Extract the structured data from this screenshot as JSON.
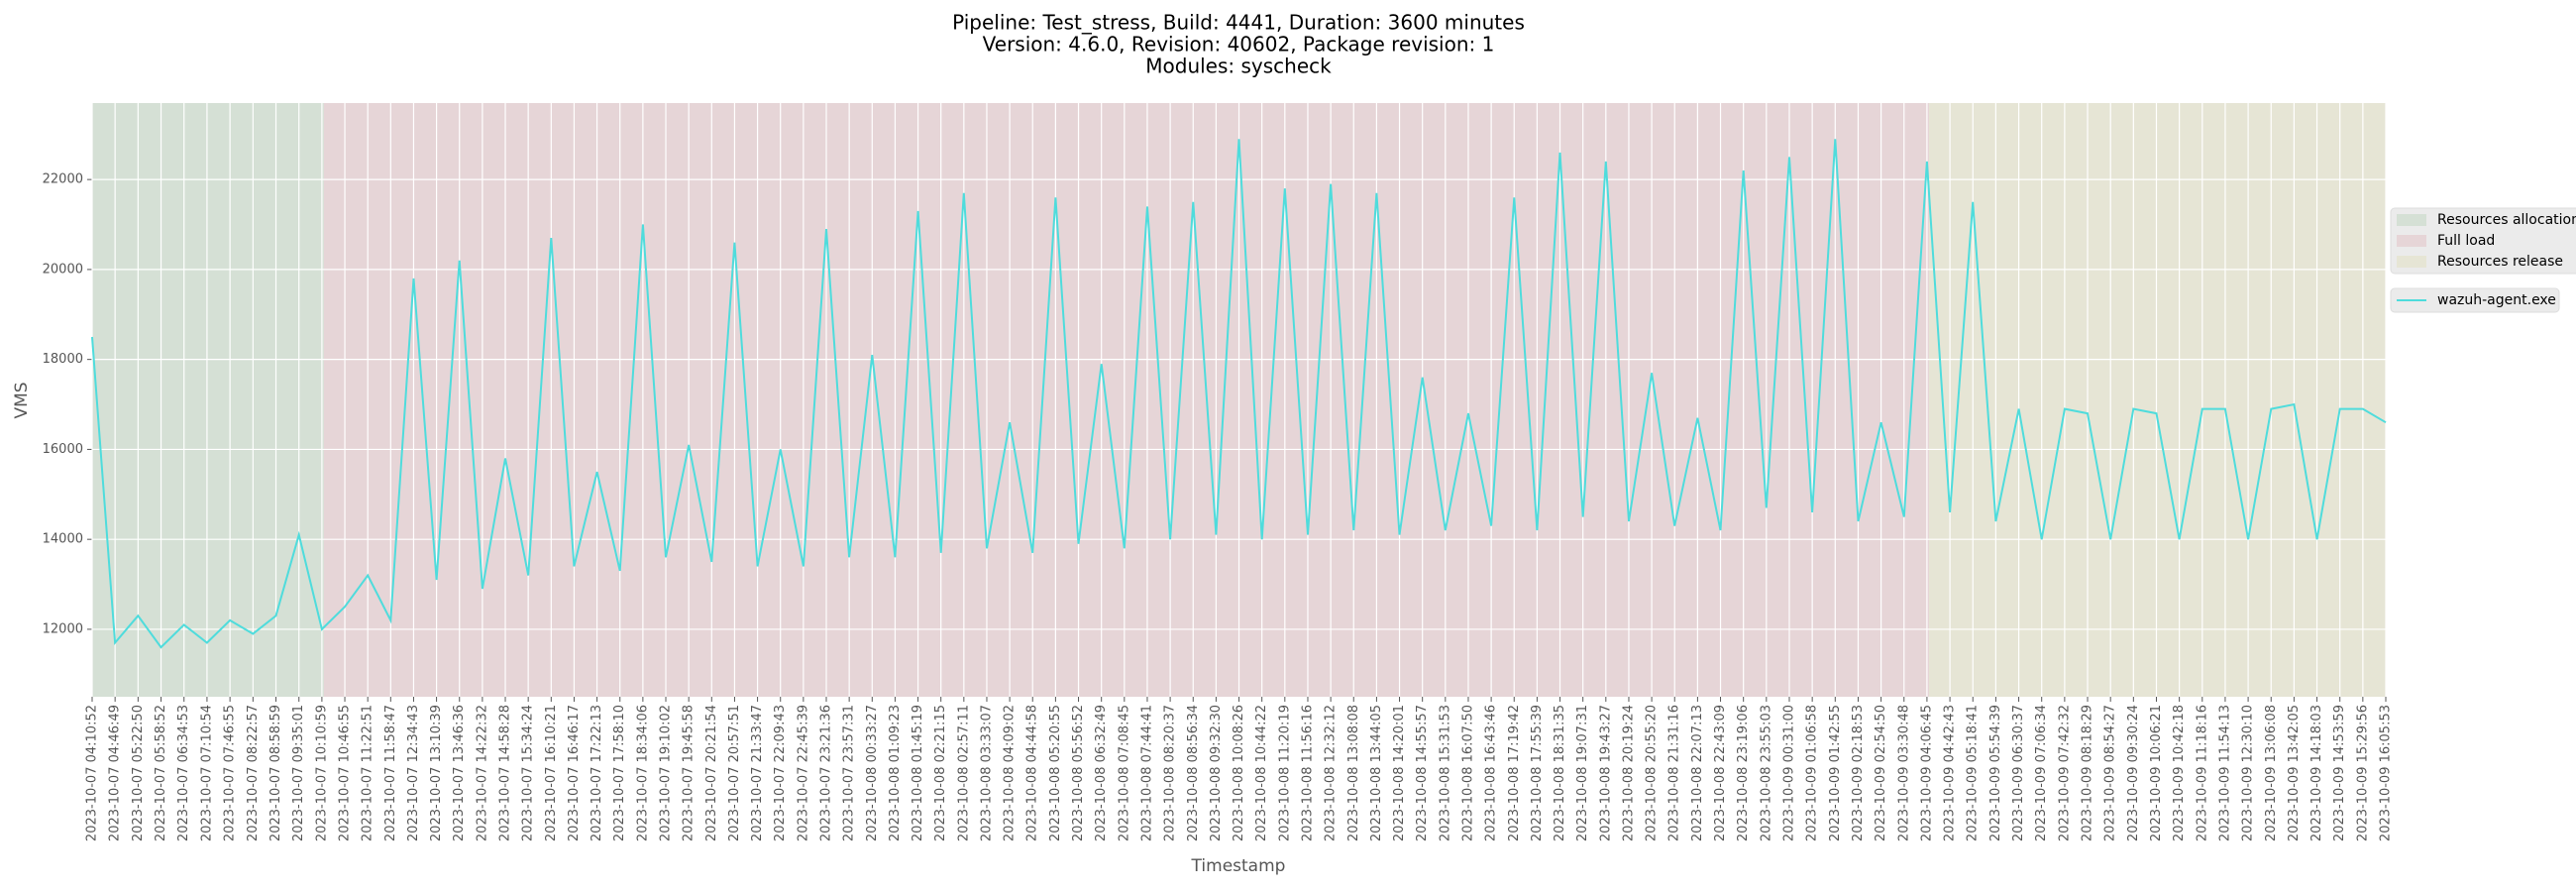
{
  "chart_data": {
    "type": "line",
    "title": [
      "Pipeline: Test_stress, Build: 4441, Duration: 3600 minutes",
      "Version: 4.6.0, Revision: 40602, Package revision: 1",
      "Modules: syscheck"
    ],
    "xlabel": "Timestamp",
    "ylabel": "VMS",
    "x": [
      "2023-10-07 04:10:52",
      "2023-10-07 04:46:49",
      "2023-10-07 05:22:50",
      "2023-10-07 05:58:52",
      "2023-10-07 06:34:53",
      "2023-10-07 07:10:54",
      "2023-10-07 07:46:55",
      "2023-10-07 08:22:57",
      "2023-10-07 08:58:59",
      "2023-10-07 09:35:01",
      "2023-10-07 10:10:59",
      "2023-10-07 10:46:55",
      "2023-10-07 11:22:51",
      "2023-10-07 11:58:47",
      "2023-10-07 12:34:43",
      "2023-10-07 13:10:39",
      "2023-10-07 13:46:36",
      "2023-10-07 14:22:32",
      "2023-10-07 14:58:28",
      "2023-10-07 15:34:24",
      "2023-10-07 16:10:21",
      "2023-10-07 16:46:17",
      "2023-10-07 17:22:13",
      "2023-10-07 17:58:10",
      "2023-10-07 18:34:06",
      "2023-10-07 19:10:02",
      "2023-10-07 19:45:58",
      "2023-10-07 20:21:54",
      "2023-10-07 20:57:51",
      "2023-10-07 21:33:47",
      "2023-10-07 22:09:43",
      "2023-10-07 22:45:39",
      "2023-10-07 23:21:36",
      "2023-10-07 23:57:31",
      "2023-10-08 00:33:27",
      "2023-10-08 01:09:23",
      "2023-10-08 01:45:19",
      "2023-10-08 02:21:15",
      "2023-10-08 02:57:11",
      "2023-10-08 03:33:07",
      "2023-10-08 04:09:02",
      "2023-10-08 04:44:58",
      "2023-10-08 05:20:55",
      "2023-10-08 05:56:52",
      "2023-10-08 06:32:49",
      "2023-10-08 07:08:45",
      "2023-10-08 07:44:41",
      "2023-10-08 08:20:37",
      "2023-10-08 08:56:34",
      "2023-10-08 09:32:30",
      "2023-10-08 10:08:26",
      "2023-10-08 10:44:22",
      "2023-10-08 11:20:19",
      "2023-10-08 11:56:16",
      "2023-10-08 12:32:12",
      "2023-10-08 13:08:08",
      "2023-10-08 13:44:05",
      "2023-10-08 14:20:01",
      "2023-10-08 14:55:57",
      "2023-10-08 15:31:53",
      "2023-10-08 16:07:50",
      "2023-10-08 16:43:46",
      "2023-10-08 17:19:42",
      "2023-10-08 17:55:39",
      "2023-10-08 18:31:35",
      "2023-10-08 19:07:31",
      "2023-10-08 19:43:27",
      "2023-10-08 20:19:24",
      "2023-10-08 20:55:20",
      "2023-10-08 21:31:16",
      "2023-10-08 22:07:13",
      "2023-10-08 22:43:09",
      "2023-10-08 23:19:06",
      "2023-10-08 23:55:03",
      "2023-10-09 00:31:00",
      "2023-10-09 01:06:58",
      "2023-10-09 01:42:55",
      "2023-10-09 02:18:53",
      "2023-10-09 02:54:50",
      "2023-10-09 03:30:48",
      "2023-10-09 04:06:45",
      "2023-10-09 04:42:43",
      "2023-10-09 05:18:41",
      "2023-10-09 05:54:39",
      "2023-10-09 06:30:37",
      "2023-10-09 07:06:34",
      "2023-10-09 07:42:32",
      "2023-10-09 08:18:29",
      "2023-10-09 08:54:27",
      "2023-10-09 09:30:24",
      "2023-10-09 10:06:21",
      "2023-10-09 10:42:18",
      "2023-10-09 11:18:16",
      "2023-10-09 11:54:13",
      "2023-10-09 12:30:10",
      "2023-10-09 13:06:08",
      "2023-10-09 13:42:05",
      "2023-10-09 14:18:03",
      "2023-10-09 14:53:59",
      "2023-10-09 15:29:56",
      "2023-10-09 16:05:53"
    ],
    "xticks": [
      "2023-10-07 04:10:52",
      "2023-10-07 04:46:49",
      "2023-10-07 05:22:50",
      "2023-10-07 05:58:52",
      "2023-10-07 06:34:53",
      "2023-10-07 07:10:54",
      "2023-10-07 07:46:55",
      "2023-10-07 08:22:57",
      "2023-10-07 08:58:59",
      "2023-10-07 09:35:01",
      "2023-10-07 10:10:59",
      "2023-10-07 10:46:55",
      "2023-10-07 11:22:51",
      "2023-10-07 11:58:47",
      "2023-10-07 12:34:43",
      "2023-10-07 13:10:39",
      "2023-10-07 13:46:36",
      "2023-10-07 14:22:32",
      "2023-10-07 14:58:28",
      "2023-10-07 15:34:24",
      "2023-10-07 16:10:21",
      "2023-10-07 16:46:17",
      "2023-10-07 17:22:13",
      "2023-10-07 17:58:10",
      "2023-10-07 18:34:06",
      "2023-10-07 19:10:02",
      "2023-10-07 19:45:58",
      "2023-10-07 20:21:54",
      "2023-10-07 20:57:51",
      "2023-10-07 21:33:47",
      "2023-10-07 22:09:43",
      "2023-10-07 22:45:39",
      "2023-10-07 23:21:36",
      "2023-10-07 23:57:31",
      "2023-10-08 00:33:27",
      "2023-10-08 01:09:23",
      "2023-10-08 01:45:19",
      "2023-10-08 02:21:15",
      "2023-10-08 02:57:11",
      "2023-10-08 03:33:07",
      "2023-10-08 04:09:02",
      "2023-10-08 04:44:58",
      "2023-10-08 05:20:55",
      "2023-10-08 05:56:52",
      "2023-10-08 06:32:49",
      "2023-10-08 07:08:45",
      "2023-10-08 07:44:41",
      "2023-10-08 08:20:37",
      "2023-10-08 08:56:34",
      "2023-10-08 09:32:30",
      "2023-10-08 10:08:26",
      "2023-10-08 10:44:22",
      "2023-10-08 11:20:19",
      "2023-10-08 11:56:16",
      "2023-10-08 12:32:12",
      "2023-10-08 13:08:08",
      "2023-10-08 13:44:05",
      "2023-10-08 14:20:01",
      "2023-10-08 14:55:57",
      "2023-10-08 15:31:53",
      "2023-10-08 16:07:50",
      "2023-10-08 16:43:46",
      "2023-10-08 17:19:42",
      "2023-10-08 17:55:39",
      "2023-10-08 18:31:35",
      "2023-10-08 19:07:31",
      "2023-10-08 19:43:27",
      "2023-10-08 20:19:24",
      "2023-10-08 20:55:20",
      "2023-10-08 21:31:16",
      "2023-10-08 22:07:13",
      "2023-10-08 22:43:09",
      "2023-10-08 23:19:06",
      "2023-10-08 23:55:03",
      "2023-10-09 00:31:00",
      "2023-10-09 01:06:58",
      "2023-10-09 01:42:55",
      "2023-10-09 02:18:53",
      "2023-10-09 02:54:50",
      "2023-10-09 03:30:48",
      "2023-10-09 04:06:45",
      "2023-10-09 04:42:43",
      "2023-10-09 05:18:41",
      "2023-10-09 05:54:39",
      "2023-10-09 06:30:37",
      "2023-10-09 07:06:34",
      "2023-10-09 07:42:32",
      "2023-10-09 08:18:29",
      "2023-10-09 08:54:27",
      "2023-10-09 09:30:24",
      "2023-10-09 10:06:21",
      "2023-10-09 10:42:18",
      "2023-10-09 11:18:16",
      "2023-10-09 11:54:13",
      "2023-10-09 12:30:10",
      "2023-10-09 13:06:08",
      "2023-10-09 13:42:05",
      "2023-10-09 14:18:03",
      "2023-10-09 14:53:59",
      "2023-10-09 15:29:56",
      "2023-10-09 16:05:53"
    ],
    "xlim": [
      "2023-10-07 04:10:52",
      "2023-10-09 16:05:53"
    ],
    "ylim": [
      10500,
      23700
    ],
    "yticks": [
      12000,
      14000,
      16000,
      18000,
      20000,
      22000
    ],
    "grid": true,
    "legend": "right",
    "spans": [
      {
        "name": "Resources allocation",
        "start": "2023-10-07 04:10:52",
        "end": "2023-10-07 10:14:00",
        "color": "#d5e0d5"
      },
      {
        "name": "Full load",
        "start": "2023-10-07 10:14:00",
        "end": "2023-10-09 04:10:00",
        "color": "#e6d5d7"
      },
      {
        "name": "Resources release",
        "start": "2023-10-09 04:10:00",
        "end": "2023-10-09 16:05:53",
        "color": "#e6e5d5"
      }
    ],
    "series": [
      {
        "name": "wazuh-agent.exe",
        "color": "#4fdcdc",
        "values": [
          18500,
          11700,
          12300,
          11600,
          12100,
          11700,
          12200,
          11900,
          12300,
          14100,
          12000,
          12500,
          13200,
          12200,
          19800,
          13100,
          20200,
          12900,
          15800,
          13200,
          20700,
          13400,
          15500,
          13300,
          21000,
          13600,
          16100,
          13500,
          20600,
          13400,
          16000,
          13400,
          20900,
          13600,
          18100,
          13600,
          21300,
          13700,
          21700,
          13800,
          16600,
          13700,
          21600,
          13900,
          17900,
          13800,
          21400,
          14000,
          21500,
          14100,
          22900,
          14000,
          21800,
          14100,
          21900,
          14200,
          21700,
          14100,
          17600,
          14200,
          16800,
          14300,
          21600,
          14200,
          22600,
          14500,
          22400,
          14400,
          17700,
          14300,
          16700,
          14200,
          22200,
          14700,
          22500,
          14600,
          22900,
          14400,
          16600,
          14500,
          22400,
          14600,
          21500,
          14400,
          16900,
          14000,
          16900,
          16800,
          14000,
          16900,
          16800,
          14000,
          16900,
          16900,
          14000,
          16900,
          17000,
          14000,
          16900,
          16900,
          16600
        ]
      }
    ]
  }
}
